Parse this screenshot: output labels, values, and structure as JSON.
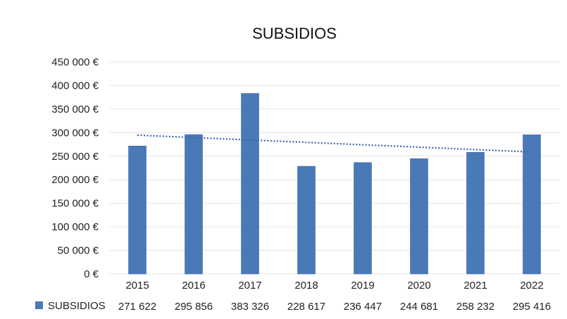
{
  "chart_data": {
    "type": "bar",
    "title": "SUBSIDIOS",
    "categories": [
      "2015",
      "2016",
      "2017",
      "2018",
      "2019",
      "2020",
      "2021",
      "2022"
    ],
    "series": [
      {
        "name": "SUBSIDIOS",
        "values": [
          271622,
          295856,
          383326,
          228617,
          236447,
          244681,
          258232,
          295416
        ],
        "value_labels": [
          "271 622",
          "295 856",
          "383 326",
          "228 617",
          "236 447",
          "244 681",
          "258 232",
          "295 416"
        ],
        "color": "#4a79b8"
      }
    ],
    "trendline": {
      "type": "linear",
      "style": "dotted",
      "color": "#3a63a8"
    },
    "y_ticks": [
      "0 €",
      "50 000 €",
      "100 000 €",
      "150 000 €",
      "200 000 €",
      "250 000 €",
      "300 000 €",
      "350 000 €",
      "400 000 €",
      "450 000 €"
    ],
    "ylim": [
      0,
      450000
    ],
    "grid": true,
    "data_table": true,
    "legend": "data-table"
  }
}
